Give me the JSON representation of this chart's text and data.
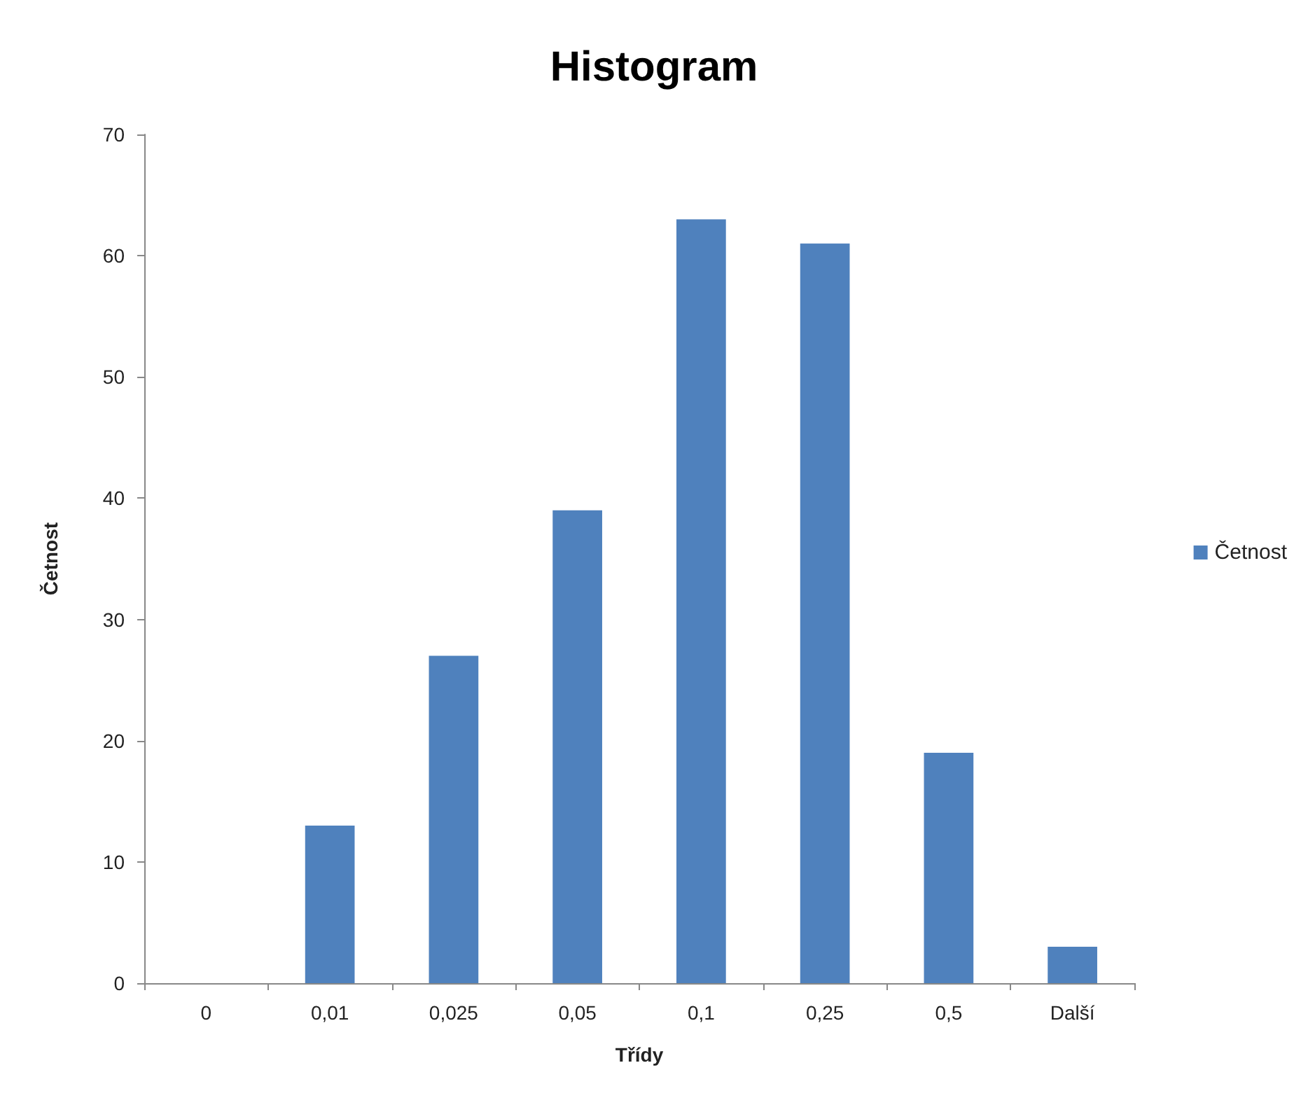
{
  "chart_data": {
    "type": "bar",
    "title": "Histogram",
    "xlabel": "Třídy",
    "ylabel": "Četnost",
    "categories": [
      "0",
      "0,01",
      "0,025",
      "0,05",
      "0,1",
      "0,25",
      "0,5",
      "Další"
    ],
    "series": [
      {
        "name": "Četnost",
        "color": "#4f81bd",
        "values": [
          0,
          13,
          27,
          39,
          63,
          61,
          19,
          3
        ]
      }
    ],
    "ylim": [
      0,
      70
    ],
    "yticks": [
      0,
      10,
      20,
      30,
      40,
      50,
      60,
      70
    ],
    "grid": false,
    "legend": "right"
  }
}
